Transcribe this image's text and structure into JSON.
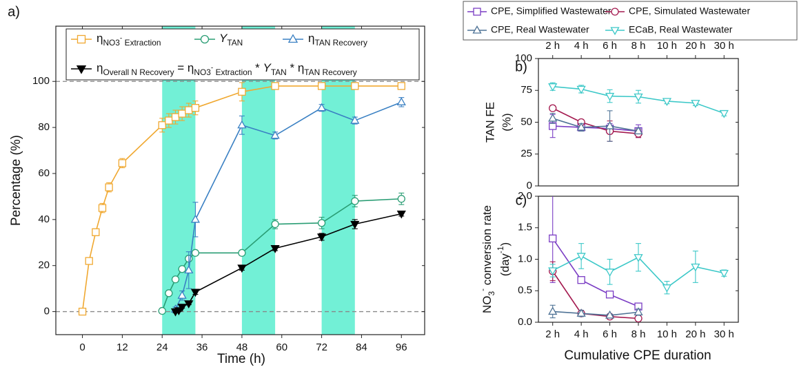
{
  "chart_data": [
    {
      "type": "line",
      "panel_label": "a)",
      "xlabel": "Time (h)",
      "ylabel": "Percentage (%)",
      "xlim": [
        -8,
        103
      ],
      "ylim": [
        -10,
        124
      ],
      "xticks": [
        0,
        12,
        24,
        36,
        48,
        60,
        72,
        84,
        96
      ],
      "yticks": [
        0,
        20,
        40,
        60,
        80,
        100
      ],
      "hlines": [
        0,
        100
      ],
      "shaded_regions": [
        [
          24,
          34
        ],
        [
          48,
          58
        ],
        [
          72,
          82
        ]
      ],
      "shade_color": "#72f0d6",
      "series": [
        {
          "name": [
            {
              "t": "η"
            },
            {
              "t": "NO3",
              "s": "sub"
            },
            {
              "t": "-",
              "s": "subsup"
            },
            {
              "t": " Extraction",
              "s": "sub"
            }
          ],
          "color": "#f0a830",
          "marker": "square",
          "filled": false,
          "x": [
            0,
            2,
            4,
            6,
            8,
            12,
            24,
            26,
            28,
            30,
            32,
            34,
            48,
            58,
            72,
            82,
            96
          ],
          "values": [
            0,
            22,
            34.5,
            45,
            54,
            64.5,
            81,
            83,
            84.5,
            86,
            87.5,
            88.5,
            95.5,
            98,
            98,
            98,
            98
          ],
          "errors": [
            0.5,
            1,
            1.5,
            2,
            2,
            2,
            3,
            3,
            3,
            3,
            3,
            3,
            4,
            1,
            1,
            1,
            1
          ]
        },
        {
          "name": [
            {
              "t": "Y",
              "s": "it"
            },
            {
              "t": "TAN",
              "s": "sub"
            }
          ],
          "color": "#2a9d74",
          "marker": "circle",
          "filled": false,
          "x": [
            24,
            26,
            28,
            30,
            32,
            34,
            48,
            58,
            72,
            82,
            96
          ],
          "values": [
            0.3,
            8,
            14,
            18.5,
            23,
            25.5,
            25.5,
            38,
            38.5,
            48,
            49
          ],
          "errors": [
            1,
            1,
            1,
            1,
            1,
            1,
            1,
            2,
            2.5,
            2.5,
            2.5
          ]
        },
        {
          "name": [
            {
              "t": "η"
            },
            {
              "t": "TAN Recovery",
              "s": "sub"
            }
          ],
          "color": "#3a80c3",
          "marker": "triangle-up",
          "filled": false,
          "x": [
            28,
            30,
            32,
            34,
            48,
            58,
            72,
            82,
            96
          ],
          "values": [
            1,
            7,
            18,
            40,
            81,
            76.5,
            88.5,
            83,
            91
          ],
          "errors": [
            1,
            2,
            8,
            7.5,
            4,
            1.5,
            1.5,
            1.5,
            2
          ]
        },
        {
          "name": [
            {
              "t": "η"
            },
            {
              "t": "Overall N Recovery",
              "s": "sub"
            },
            {
              "t": " = η"
            },
            {
              "t": "NO3",
              "s": "sub"
            },
            {
              "t": "-",
              "s": "subsup"
            },
            {
              "t": " Extraction",
              "s": "sub"
            },
            {
              "t": " * "
            },
            {
              "t": "Y",
              "s": "it"
            },
            {
              "t": "TAN",
              "s": "sub"
            },
            {
              "t": " * η"
            },
            {
              "t": "TAN Recovery",
              "s": "sub"
            }
          ],
          "color": "#000000",
          "marker": "triangle-down",
          "filled": true,
          "x": [
            28,
            29,
            30,
            32,
            34,
            48,
            58,
            72,
            82,
            96
          ],
          "values": [
            0,
            0.5,
            2,
            3.5,
            8.5,
            19,
            27.5,
            32.5,
            38,
            42.5
          ],
          "errors": [
            0.5,
            0.5,
            0.5,
            0.5,
            1,
            1,
            1,
            1.5,
            2,
            1
          ]
        }
      ]
    },
    {
      "type": "line",
      "panel_label": "b)",
      "ylabel": [
        "TAN FE",
        "(%)"
      ],
      "categories": [
        "2 h",
        "4 h",
        "6 h",
        "8 h",
        "10 h",
        "20 h",
        "30 h"
      ],
      "ylim": [
        0,
        100
      ],
      "yticks": [
        0,
        25,
        50,
        75,
        100
      ],
      "series": [
        {
          "name": "CPE, Simplified Wastewater",
          "color": "#7a3cc4",
          "marker": "square",
          "filled": false,
          "values": [
            47,
            46,
            45,
            43,
            null,
            null,
            null
          ],
          "errors": [
            9,
            3,
            4,
            5,
            null,
            null,
            null
          ]
        },
        {
          "name": "CPE, Simulated Wastewater",
          "color": "#a3184e",
          "marker": "circle",
          "filled": false,
          "values": [
            61,
            50,
            43,
            41,
            null,
            null,
            null
          ],
          "errors": [
            2,
            2,
            8,
            3,
            null,
            null,
            null
          ]
        },
        {
          "name": "CPE, Real Wastewater",
          "color": "#4f7396",
          "marker": "triangle-up",
          "filled": false,
          "values": [
            53,
            46,
            47,
            43,
            null,
            null,
            null
          ],
          "errors": [
            4,
            3,
            12,
            2,
            null,
            null,
            null
          ]
        },
        {
          "name": "ECaB, Real Wastewater",
          "color": "#3cc8c8",
          "marker": "triangle-down",
          "filled": false,
          "values": [
            78,
            76,
            70.5,
            70,
            66.5,
            65,
            57
          ],
          "errors": [
            3,
            3,
            5,
            5,
            2,
            2,
            2
          ]
        }
      ]
    },
    {
      "type": "line",
      "panel_label": "c)",
      "xlabel": "Cumulative CPE duration",
      "ylabel": [
        [
          {
            "t": "NO"
          },
          {
            "t": "3",
            "s": "sub"
          },
          {
            "t": "-",
            "s": "sup"
          },
          {
            "t": " conversion rate"
          }
        ],
        [
          {
            "t": "(day"
          },
          {
            "t": "-1",
            "s": "sup"
          },
          {
            "t": ")"
          }
        ]
      ],
      "categories": [
        "2 h",
        "4 h",
        "6 h",
        "8 h",
        "10 h",
        "20 h",
        "30 h"
      ],
      "ylim": [
        0,
        2
      ],
      "yticks": [
        {
          "value": 0,
          "label": "0.0"
        },
        0.5,
        {
          "value": 1,
          "label": "1.0"
        },
        1.5,
        {
          "value": 2,
          "label": "2.0"
        }
      ],
      "series": [
        {
          "color": "#7a3cc4",
          "marker": "square",
          "filled": false,
          "values": [
            1.33,
            0.67,
            0.44,
            0.25,
            null,
            null,
            null
          ],
          "errors": [
            0.7,
            0.05,
            0.03,
            0.03,
            null,
            null,
            null
          ]
        },
        {
          "color": "#a3184e",
          "marker": "circle",
          "filled": false,
          "values": [
            0.81,
            0.14,
            0.09,
            0.06,
            null,
            null,
            null
          ],
          "errors": [
            0.15,
            0.03,
            0.02,
            0.02,
            null,
            null,
            null
          ]
        },
        {
          "color": "#4f7396",
          "marker": "triangle-up",
          "filled": false,
          "values": [
            0.17,
            0.14,
            0.11,
            0.16,
            null,
            null,
            null
          ],
          "errors": [
            0.1,
            0.05,
            0.02,
            0.05,
            null,
            null,
            null
          ]
        },
        {
          "color": "#3cc8c8",
          "marker": "triangle-down",
          "filled": false,
          "values": [
            0.82,
            1.05,
            0.8,
            1.03,
            0.55,
            0.88,
            0.78
          ],
          "errors": [
            0.1,
            0.2,
            0.2,
            0.22,
            0.1,
            0.25,
            0.05
          ]
        }
      ]
    }
  ]
}
